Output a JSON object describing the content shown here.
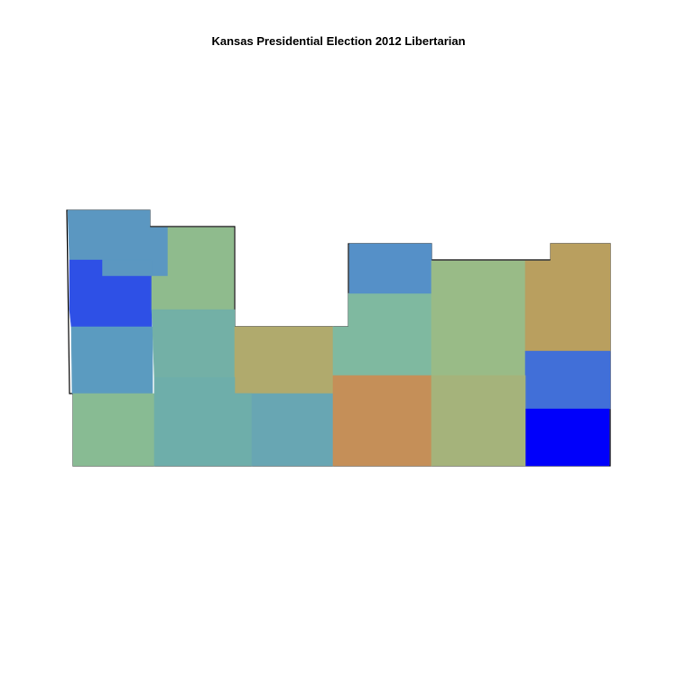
{
  "title": "Kansas Presidential Election 2012 Libertarian",
  "map": {
    "state": "Kansas",
    "type": "choropleth",
    "outline_color": "#000000",
    "regions": [
      {
        "name": "nw-top-a",
        "color": "#5b97c1"
      },
      {
        "name": "nw-top-b",
        "color": "#5b97c1"
      },
      {
        "name": "nw-blue",
        "color": "#2e50e6"
      },
      {
        "name": "nw-green",
        "color": "#8fbb8d"
      },
      {
        "name": "w-mid-left",
        "color": "#5b9bc0"
      },
      {
        "name": "w-mid-right",
        "color": "#73b0a6"
      },
      {
        "name": "c-tan",
        "color": "#b0aa6d"
      },
      {
        "name": "c-teal",
        "color": "#7fb9a0"
      },
      {
        "name": "n-blue",
        "color": "#5590c8"
      },
      {
        "name": "ne-green",
        "color": "#99bb87"
      },
      {
        "name": "ne-tan",
        "color": "#b99f5f"
      },
      {
        "name": "e-blue",
        "color": "#416fd8"
      },
      {
        "name": "se-blue",
        "color": "#0000fb"
      },
      {
        "name": "sw-green",
        "color": "#88bb93"
      },
      {
        "name": "s-teal-a",
        "color": "#6eaeaa"
      },
      {
        "name": "s-teal-b",
        "color": "#68a6b3"
      },
      {
        "name": "s-orange",
        "color": "#c58f58"
      },
      {
        "name": "s-olive",
        "color": "#a5b37b"
      }
    ]
  }
}
